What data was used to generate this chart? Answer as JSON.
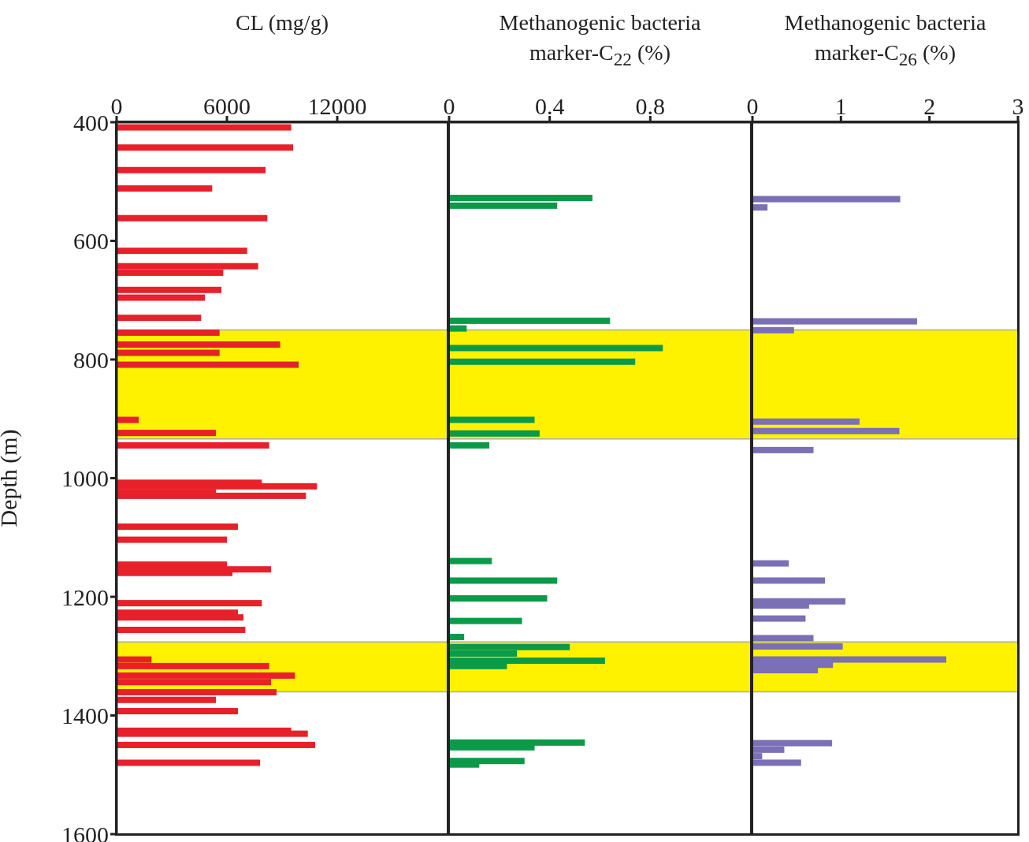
{
  "chart_data": [
    {
      "type": "bar",
      "orientation": "horizontal",
      "xlabel": "CL (mg/g)",
      "ylabel": "Depth (m)",
      "color": "#e8202a",
      "x": [
        409,
        443,
        481,
        512,
        562,
        617,
        643,
        654,
        683,
        696,
        730,
        755,
        775,
        789,
        809,
        902,
        924,
        945,
        1008,
        1014,
        1024,
        1030,
        1082,
        1104,
        1146,
        1154,
        1160,
        1211,
        1227,
        1235,
        1256,
        1306,
        1317,
        1333,
        1344,
        1361,
        1374,
        1393,
        1426,
        1431,
        1450,
        1480
      ],
      "values": [
        9500,
        9600,
        8100,
        5200,
        8200,
        7100,
        7700,
        5800,
        5700,
        4800,
        4600,
        5600,
        8900,
        5600,
        9900,
        1200,
        5400,
        8300,
        7900,
        10900,
        5400,
        10300,
        6600,
        6000,
        6000,
        8400,
        6300,
        7900,
        6600,
        6900,
        7000,
        1900,
        8300,
        9700,
        8400,
        8700,
        5400,
        6600,
        9500,
        10400,
        10800,
        7800
      ],
      "xlim": [
        0,
        18000
      ],
      "xticks": [
        0,
        6000,
        12000
      ],
      "ylim": [
        1600,
        400
      ],
      "yticks": [
        400,
        600,
        800,
        1000,
        1200,
        1400,
        1600
      ],
      "bands": [
        {
          "axis": "y",
          "from": 750,
          "to": 934,
          "color": "#fff200"
        },
        {
          "axis": "y",
          "from": 1276,
          "to": 1360,
          "color": "#fff200"
        }
      ]
    },
    {
      "type": "bar",
      "orientation": "horizontal",
      "xlabel": "Methanogenic bacteria marker-C$_{22}$ (%)",
      "color": "#0a9a48",
      "tick_labels": "x",
      "x": [
        528,
        541,
        735,
        748,
        781,
        804,
        902,
        925,
        945,
        1140,
        1173,
        1203,
        1241,
        1268,
        1285,
        1296,
        1308,
        1317,
        1446,
        1454,
        1477,
        1483
      ],
      "values": [
        0.57,
        0.43,
        0.64,
        0.07,
        0.85,
        0.74,
        0.34,
        0.36,
        0.16,
        0.17,
        0.43,
        0.39,
        0.29,
        0.06,
        0.48,
        0.27,
        0.62,
        0.23,
        0.54,
        0.34,
        0.3,
        0.12
      ],
      "xlim": [
        0,
        1.2
      ],
      "xticks": [
        0,
        0.4,
        0.8
      ],
      "ylim": [
        1600,
        400
      ],
      "yticks": [
        400,
        600,
        800,
        1000,
        1200,
        1400,
        1600
      ],
      "bands": [
        {
          "axis": "y",
          "from": 750,
          "to": 934,
          "color": "#fff200"
        },
        {
          "axis": "y",
          "from": 1276,
          "to": 1360,
          "color": "#fff200"
        }
      ]
    },
    {
      "type": "bar",
      "orientation": "horizontal",
      "xlabel": "Methanogenic bacteria marker-C$_{26}$ (%)",
      "color": "#7b6fb5",
      "tick_labels": "x",
      "x": [
        530,
        544,
        736,
        751,
        905,
        921,
        953,
        1144,
        1173,
        1208,
        1215,
        1237,
        1270,
        1284,
        1306,
        1315,
        1324,
        1447,
        1458,
        1469,
        1480
      ],
      "values": [
        1.67,
        0.17,
        1.86,
        0.47,
        1.21,
        1.66,
        0.69,
        0.41,
        0.82,
        1.05,
        0.64,
        0.6,
        0.69,
        1.02,
        2.19,
        0.91,
        0.74,
        0.9,
        0.36,
        0.11,
        0.55
      ],
      "xlim": [
        0,
        3
      ],
      "xticks": [
        0,
        1,
        2,
        3
      ],
      "ylim": [
        1600,
        400
      ],
      "yticks": [
        400,
        600,
        800,
        1000,
        1200,
        1400,
        1600
      ],
      "bands": [
        {
          "axis": "y",
          "from": 750,
          "to": 934,
          "color": "#fff200"
        },
        {
          "axis": "y",
          "from": 1276,
          "to": 1360,
          "color": "#fff200"
        }
      ]
    }
  ]
}
